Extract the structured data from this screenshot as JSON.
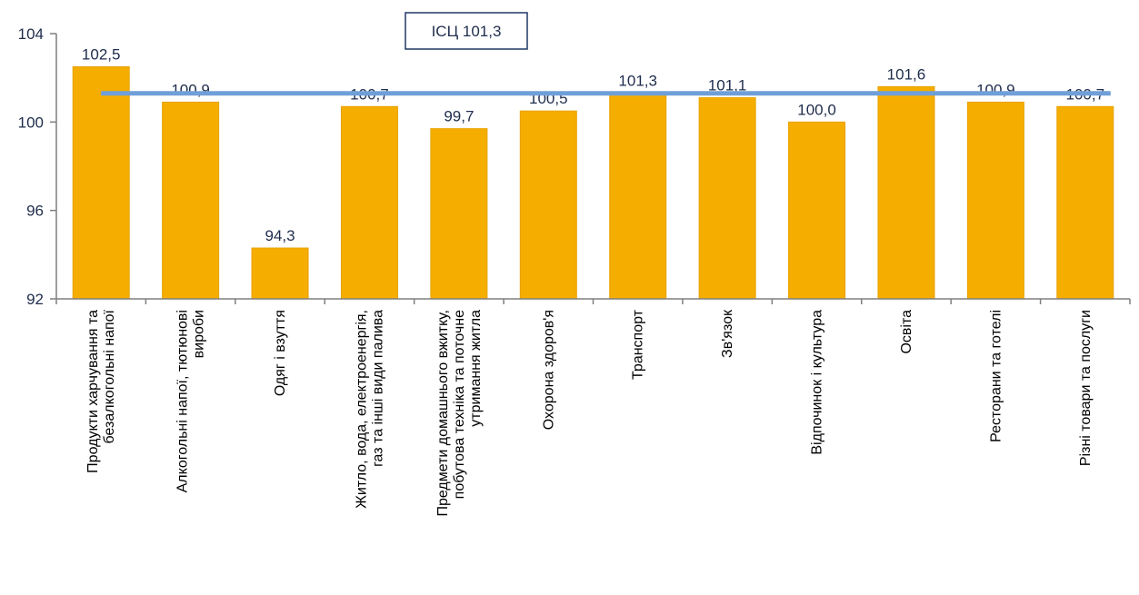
{
  "chart_data": {
    "type": "bar",
    "categories": [
      [
        "Продукти харчування та",
        "безалкогольні напої"
      ],
      [
        "Алкогольні напої, тютюнові",
        "вироби"
      ],
      [
        "Одяг і взуття"
      ],
      [
        "Житло, вода, електроенергія,",
        "газ та інші види палива"
      ],
      [
        "Предмети домашнього вжитку,",
        "побутова техніка та поточне",
        "утримання житла"
      ],
      [
        "Охорона здоров'я"
      ],
      [
        "Транспорт"
      ],
      [
        "Зв'язок"
      ],
      [
        "Відпочинок і культура"
      ],
      [
        "Освіта"
      ],
      [
        "Ресторани та готелі"
      ],
      [
        "Різні товари та послуги"
      ]
    ],
    "values": [
      102.5,
      100.9,
      94.3,
      100.7,
      99.7,
      100.5,
      101.3,
      101.1,
      100.0,
      101.6,
      100.9,
      100.7
    ],
    "value_labels": [
      "102,5",
      "100,9",
      "94,3",
      "100,7",
      "99,7",
      "100,5",
      "101,3",
      "101,1",
      "100,0",
      "101,6",
      "100,9",
      "100,7"
    ],
    "reference_line": {
      "value": 101.3,
      "label": "ІСЦ 101,3"
    },
    "ylim": [
      92,
      104
    ],
    "yticks": [
      92,
      96,
      100,
      104
    ],
    "ytick_labels": [
      "92",
      "96",
      "100",
      "104"
    ],
    "grid": false,
    "legend": "none",
    "title": "",
    "xlabel": "",
    "ylabel": "",
    "colors": {
      "bar": "#f5ad00",
      "bar_edge": "#e8a200",
      "line": "#6f9fd8"
    }
  }
}
